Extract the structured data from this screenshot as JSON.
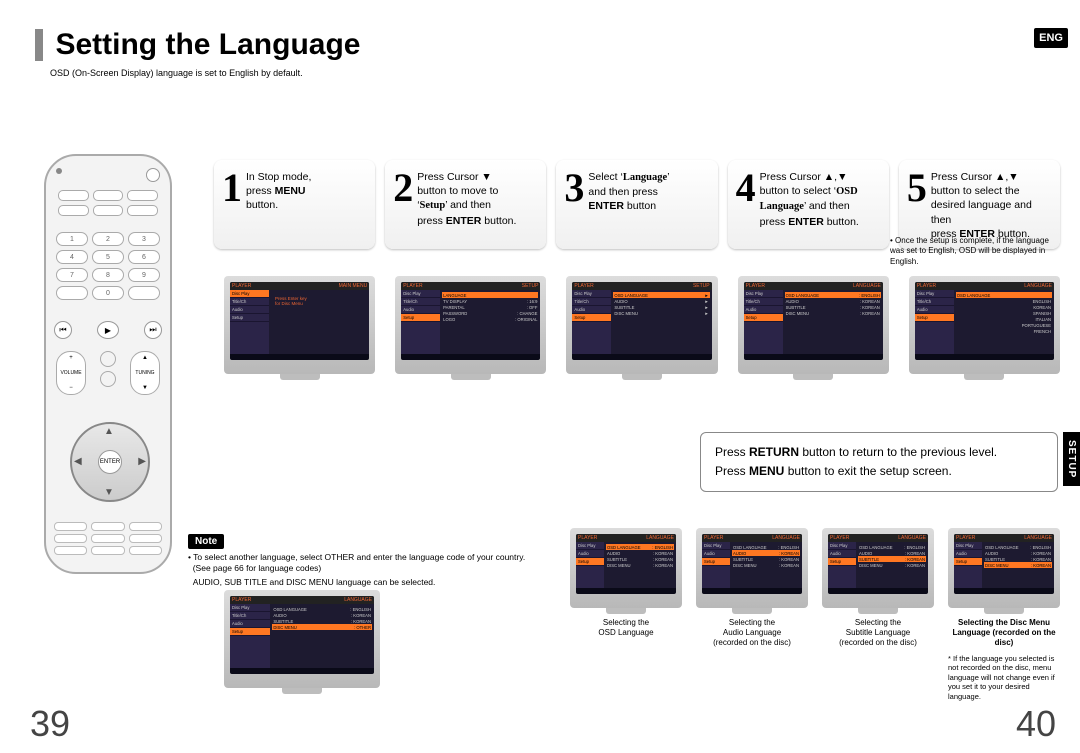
{
  "title": "Setting the Language",
  "subtitle": "OSD (On-Screen Display) language is set to English by default.",
  "eng_badge": "ENG",
  "setup_tab": "SETUP",
  "steps": [
    {
      "num": "1",
      "html": "In Stop mode,<br>press <b>MENU</b><br>button."
    },
    {
      "num": "2",
      "html": "Press Cursor ▼<br>button to move to<br>‘<b class='serif'>Setup</b>’ and then<br>press <b>ENTER</b> button."
    },
    {
      "num": "3",
      "html": "Select ‘<b class='serif'>Language</b>’<br>and then press<br><b>ENTER</b> button"
    },
    {
      "num": "4",
      "html": "Press Cursor ▲,▼<br>button to select ‘<b class='serif'>OSD<br>Language</b>’ and then<br>press <b>ENTER</b> button."
    },
    {
      "num": "5",
      "html": "Press Cursor ▲,▼<br>button to select the<br>desired language and then<br>press <b>ENTER</b> button."
    }
  ],
  "extra_note": "• Once the setup is complete, if the language was set to English, OSD will be displayed in English.",
  "info_box": [
    "Press <b>RETURN</b> button to return to the previous level.",
    "Press <b>MENU</b> button to exit the setup screen."
  ],
  "note_label": "Note",
  "notes": [
    "• To select another language, select OTHER and enter the language code of your country.<br>&nbsp;&nbsp;(See page 66 for language codes)",
    "&nbsp;&nbsp;AUDIO, SUB TITLE and DISC MENU language can be selected."
  ],
  "tv_main_hdr_left": "PLAYER",
  "tv_mainmenu": "MAIN MENU",
  "tv_setup": "SETUP",
  "tv_language": "LANGUAGE",
  "tv_side_items": [
    "Disc Play",
    "Title/Ch",
    "Audio",
    "Setup"
  ],
  "tv1_main": "Press Enter key<br>for Disc Menu",
  "tv2_rows": [
    [
      "LANGUAGE",
      "",
      ""
    ],
    [
      "TV DISPLAY",
      ":",
      "16:9"
    ],
    [
      "PARENTAL",
      ":",
      "OFF"
    ],
    [
      "PASSWORD",
      ":",
      "CHANGE"
    ],
    [
      "LOGO",
      ":",
      "ORIGINAL"
    ]
  ],
  "tv3_rows": [
    [
      "OSD LANGUAGE",
      "►"
    ],
    [
      "AUDIO",
      "►"
    ],
    [
      "SUBTITLE",
      "►"
    ],
    [
      "DISC MENU",
      "►"
    ]
  ],
  "tv4_rows": [
    [
      "OSD LANGUAGE",
      ":",
      "ENGLISH"
    ],
    [
      "AUDIO",
      ":",
      "KOREAN"
    ],
    [
      "SUBTITLE",
      ":",
      "KOREAN"
    ],
    [
      "DISC MENU",
      ":",
      "KOREAN"
    ]
  ],
  "tv5_langs": [
    "ENGLISH",
    "KOREAN",
    "SPANISH",
    "ITALIAN",
    "PORTUGUESE",
    "FRENCH"
  ],
  "bottom_left_rows": [
    [
      "OSD LANGUAGE",
      ":",
      "ENGLISH"
    ],
    [
      "AUDIO",
      ":",
      "KOREAN"
    ],
    [
      "SUBTITLE",
      ":",
      "KOREAN"
    ],
    [
      "DISC MENU",
      ":",
      "OTHER"
    ]
  ],
  "bottom_captions": [
    "Selecting the<br>OSD Language",
    "Selecting the<br>Audio Language<br>(recorded on the disc)",
    "Selecting the<br>Subtitle Language<br>(recorded on the disc)",
    "<b>Selecting the Disc Menu<br>Language (recorded on the disc)</b>"
  ],
  "footnote": "* If the language you selected is not recorded on the disc, menu language will not change even if you set it to your desired language.",
  "page_left": "39",
  "page_right": "40",
  "colors": {
    "accent": "#888888",
    "badge": "#000000",
    "tv_hl": "#ff7722"
  }
}
